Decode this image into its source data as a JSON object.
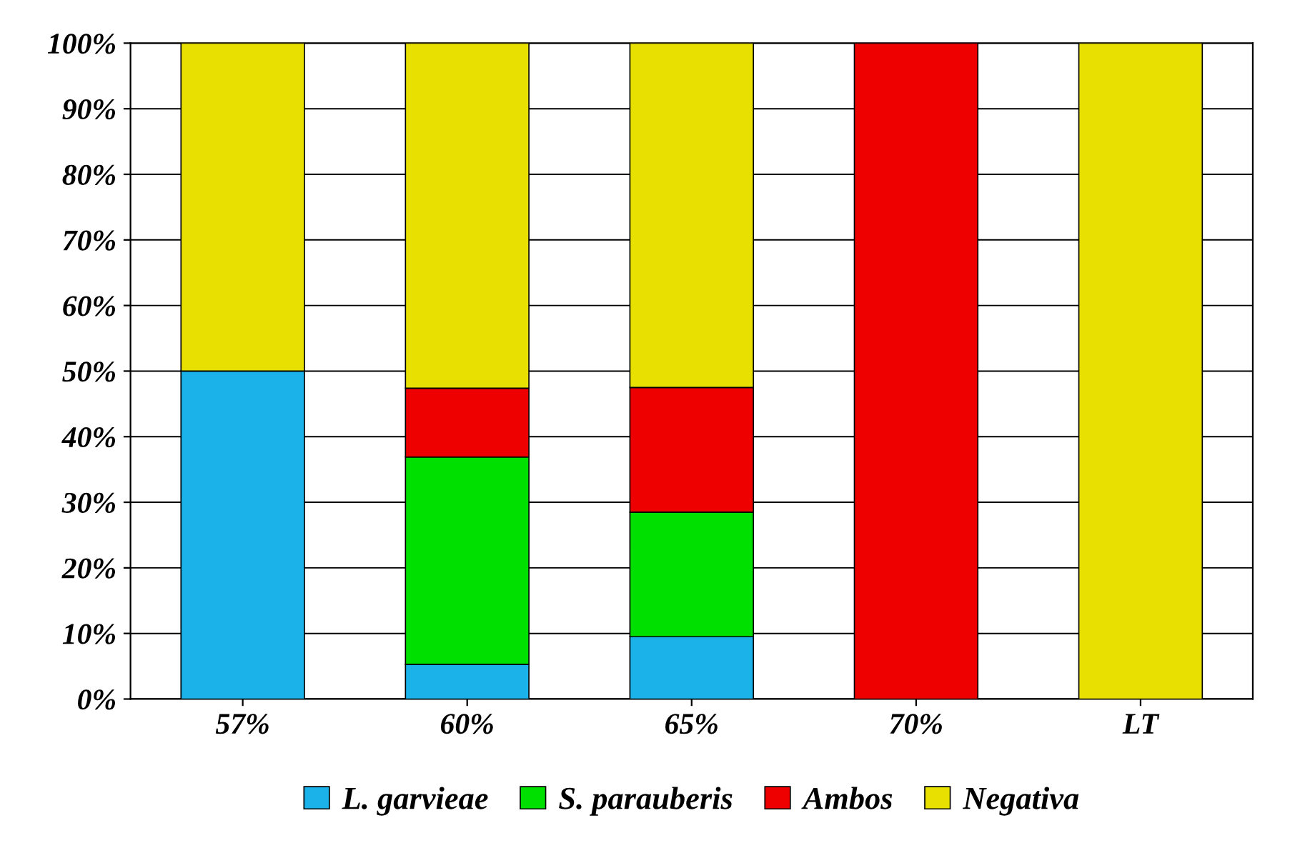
{
  "chart_data": {
    "type": "bar",
    "stacked": true,
    "categories": [
      "57%",
      "60%",
      "65%",
      "70%",
      "LT"
    ],
    "series": [
      {
        "name": "L. garvieae",
        "color": "#1ab2e8",
        "values": [
          50,
          5.3,
          9.5,
          null,
          null
        ]
      },
      {
        "name": "S. parauberis",
        "color": "#00e000",
        "values": [
          null,
          31.6,
          19,
          null,
          null
        ]
      },
      {
        "name": "Ambos",
        "color": "#ee0000",
        "values": [
          null,
          10.5,
          19,
          100,
          null
        ]
      },
      {
        "name": "Negativa",
        "color": "#e8e000",
        "values": [
          50,
          52.6,
          52.5,
          null,
          100
        ]
      }
    ],
    "ylim": [
      0,
      100
    ],
    "yticks": [
      {
        "value": 0,
        "label": "0%"
      },
      {
        "value": 10,
        "label": "10%"
      },
      {
        "value": 20,
        "label": "20%"
      },
      {
        "value": 30,
        "label": "30%"
      },
      {
        "value": 40,
        "label": "40%"
      },
      {
        "value": 50,
        "label": "50%"
      },
      {
        "value": 60,
        "label": "60%"
      },
      {
        "value": 70,
        "label": "70%"
      },
      {
        "value": 80,
        "label": "80%"
      },
      {
        "value": 90,
        "label": "90%"
      },
      {
        "value": 100,
        "label": "100%"
      }
    ],
    "grid": "y",
    "legend": "bottom"
  }
}
